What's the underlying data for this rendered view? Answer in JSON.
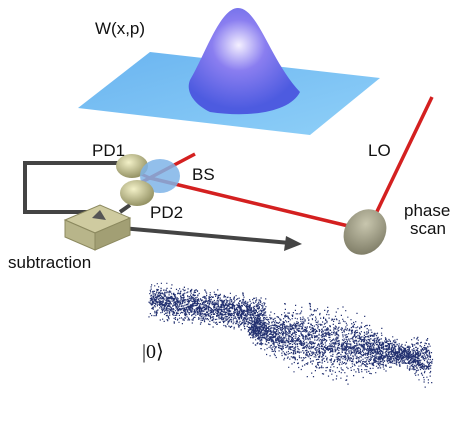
{
  "labels": {
    "wigner": "W(x,p)",
    "pd1": "PD1",
    "bs": "BS",
    "pd2": "PD2",
    "lo": "LO",
    "phase_scan": [
      "phase",
      "scan"
    ],
    "subtraction": "subtraction",
    "vacuum": "|0⟩"
  }
}
